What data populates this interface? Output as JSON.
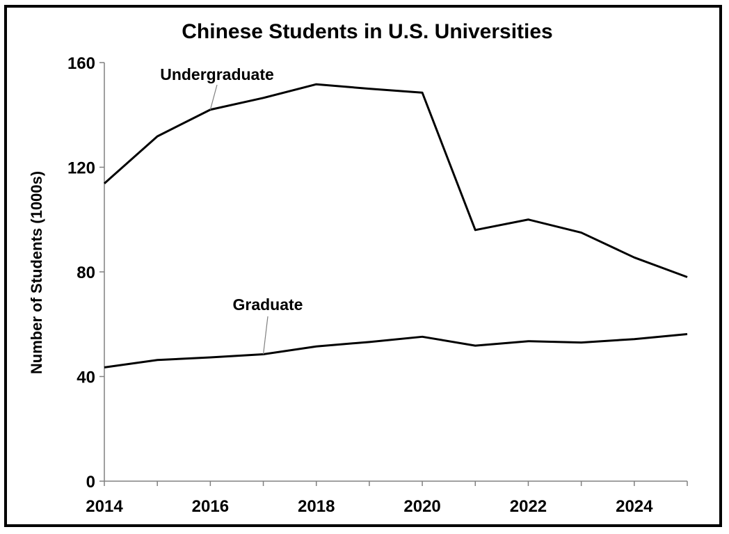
{
  "chart_data": {
    "type": "line",
    "title": "Chinese Students in U.S. Universities",
    "xlabel": "",
    "ylabel": "Number of Students (1000s)",
    "x": [
      2014,
      2015,
      2016,
      2017,
      2018,
      2019,
      2020,
      2021,
      2022,
      2023,
      2024,
      2025
    ],
    "x_ticks": [
      "2014",
      "2016",
      "2018",
      "2020",
      "2022",
      "2024"
    ],
    "y_ticks": [
      "0",
      "40",
      "80",
      "120",
      "160"
    ],
    "xlim": [
      2014,
      2025
    ],
    "ylim": [
      0,
      160
    ],
    "grid": false,
    "legend": "none",
    "series": [
      {
        "name": "Undergraduate",
        "values": [
          113.8,
          131.8,
          142.0,
          146.5,
          151.7,
          150.0,
          148.5,
          96.0,
          100.0,
          95.0,
          85.5,
          78.0
        ]
      },
      {
        "name": "Graduate",
        "values": [
          43.5,
          46.3,
          47.3,
          48.5,
          51.5,
          53.2,
          55.2,
          51.8,
          53.5,
          53.0,
          54.3,
          56.2
        ]
      }
    ]
  }
}
